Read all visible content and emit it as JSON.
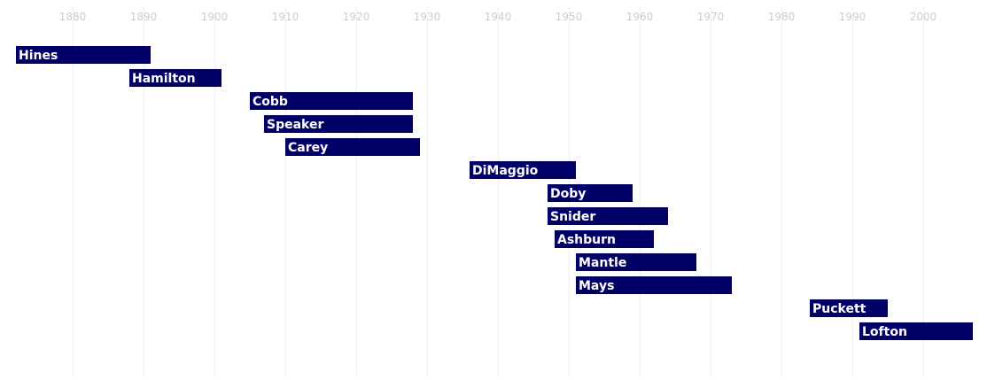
{
  "chart_data": {
    "type": "bar",
    "orientation": "horizontal-timeline",
    "title": "",
    "xlabel": "",
    "ylabel": "",
    "xlim": [
      1872,
      2007
    ],
    "x_ticks": [
      1880,
      1890,
      1900,
      1910,
      1920,
      1930,
      1940,
      1950,
      1960,
      1970,
      1980,
      1990,
      2000
    ],
    "grid": true,
    "bar_color": "#000066",
    "gridline_color": "#eeeeee",
    "tick_label_color": "#cccccc",
    "label_color": "#ffffff",
    "items": [
      {
        "name": "Hines",
        "start": 1872,
        "end": 1891
      },
      {
        "name": "Hamilton",
        "start": 1888,
        "end": 1901
      },
      {
        "name": "Cobb",
        "start": 1905,
        "end": 1928
      },
      {
        "name": "Speaker",
        "start": 1907,
        "end": 1928
      },
      {
        "name": "Carey",
        "start": 1910,
        "end": 1929
      },
      {
        "name": "DiMaggio",
        "start": 1936,
        "end": 1951
      },
      {
        "name": "Doby",
        "start": 1947,
        "end": 1959
      },
      {
        "name": "Snider",
        "start": 1947,
        "end": 1964
      },
      {
        "name": "Ashburn",
        "start": 1948,
        "end": 1962
      },
      {
        "name": "Mantle",
        "start": 1951,
        "end": 1968
      },
      {
        "name": "Mays",
        "start": 1951,
        "end": 1973
      },
      {
        "name": "Puckett",
        "start": 1984,
        "end": 1995
      },
      {
        "name": "Lofton",
        "start": 1991,
        "end": 2007
      }
    ]
  }
}
